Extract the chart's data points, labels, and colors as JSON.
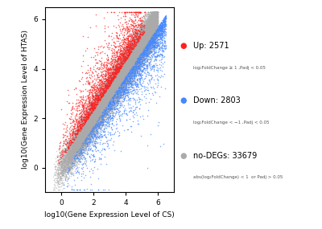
{
  "title": "",
  "xlabel": "log10(Gene Expression Level of CS)",
  "ylabel": "log10(Gene Expression Level of HTAS)",
  "xlim": [
    -1,
    7
  ],
  "ylim": [
    -1,
    6.5
  ],
  "xticks": [
    0,
    2,
    4,
    6
  ],
  "yticks": [
    0,
    2,
    4,
    6
  ],
  "up_color": "#FF2020",
  "down_color": "#4488FF",
  "nodeg_color": "#AAAAAA",
  "up_label": "Up: 2571",
  "up_sublabel": "log₂FoldChange ≥ 1 ,Padj < 0.05",
  "down_label": "Down: 2803",
  "down_sublabel": "log₂FoldChange < −1 ,Padj < 0.05",
  "nodeg_label": "no-DEGs: 33679",
  "nodeg_sublabel": "abs(log₂FoldChange) < 1  or Padj > 0.05",
  "seed": 42,
  "n_nodeg": 33679,
  "n_up": 2571,
  "n_down": 2803,
  "point_size": 1.2,
  "bg_color": "#FFFFFF"
}
